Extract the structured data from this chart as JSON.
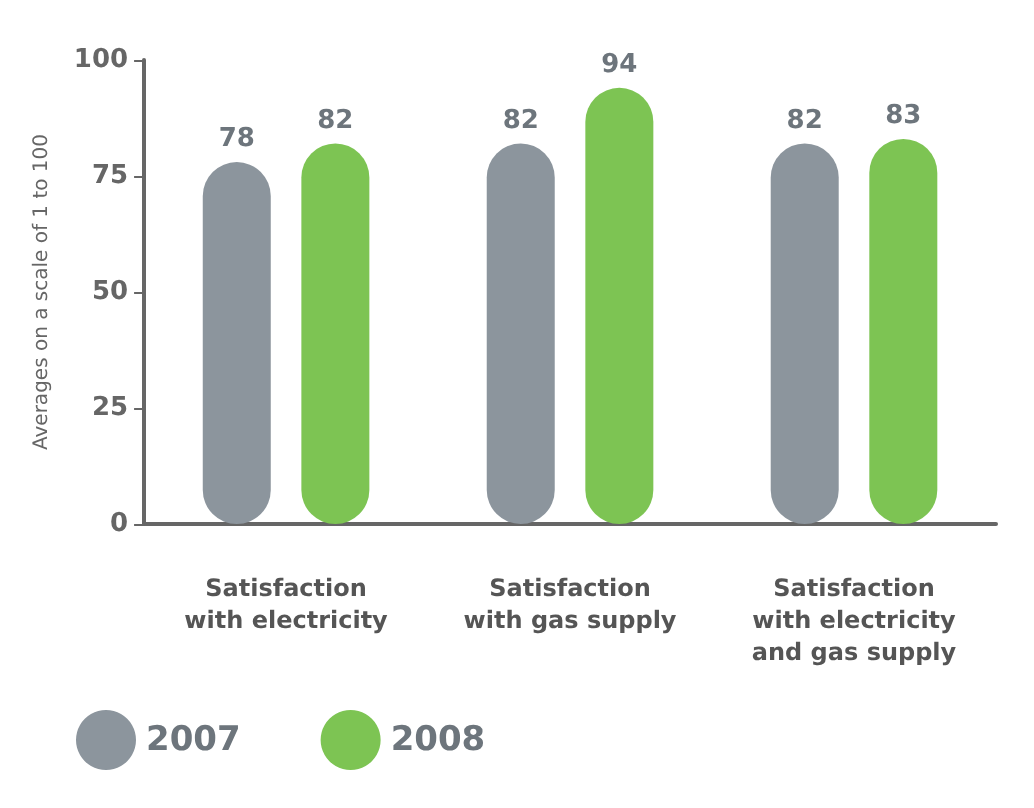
{
  "chart_data": {
    "type": "bar",
    "ylabel": "Averages on a scale of 1 to 100",
    "categories": [
      "Satisfaction\nwith electricity",
      "Satisfaction\nwith gas supply",
      "Satisfaction\nwith electricity\nand gas supply"
    ],
    "series": [
      {
        "name": "2007",
        "color": "#8c959d",
        "values": [
          78,
          82,
          82
        ]
      },
      {
        "name": "2008",
        "color": "#7dc453",
        "values": [
          82,
          94,
          83
        ]
      }
    ],
    "ylim": [
      0,
      100
    ],
    "yticks": [
      0,
      25,
      50,
      75,
      100
    ],
    "grid": false,
    "legend": "bottom left",
    "data_labels": true
  }
}
